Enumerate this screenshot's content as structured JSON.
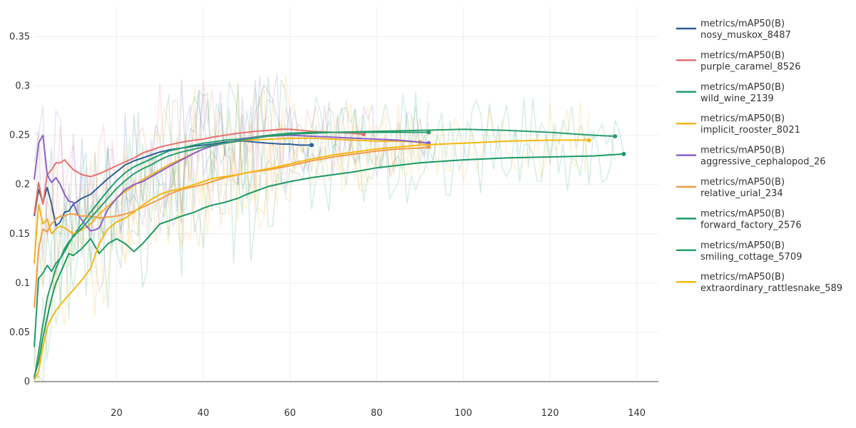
{
  "chart_data": {
    "type": "line",
    "title": "",
    "xlabel": "",
    "ylabel": "",
    "xlim": [
      1,
      145
    ],
    "ylim": [
      0,
      0.38
    ],
    "xticks": [
      20,
      40,
      60,
      80,
      100,
      120,
      140
    ],
    "yticks": [
      0,
      0.05,
      0.1,
      0.15,
      0.2,
      0.25,
      0.3,
      0.35
    ],
    "ytick_labels": [
      "0",
      "0.05",
      "0.1",
      "0.15",
      "0.2",
      "0.25",
      "0.3",
      "0.35"
    ],
    "grid": true,
    "legend_position": "right",
    "series": [
      {
        "name": "nosy_muskox_8487",
        "legend_metric": "metrics/mAP50(B)",
        "color": "#2f5f98",
        "x": [
          1,
          2,
          3,
          4,
          5,
          6,
          7,
          8,
          9,
          10,
          12,
          14,
          16,
          18,
          20,
          22,
          24,
          26,
          28,
          30,
          32,
          35,
          38,
          40,
          42,
          45,
          48,
          50,
          52,
          55,
          58,
          60,
          62,
          65
        ],
        "y": [
          0.168,
          0.195,
          0.182,
          0.197,
          0.18,
          0.158,
          0.162,
          0.172,
          0.173,
          0.18,
          0.186,
          0.19,
          0.198,
          0.206,
          0.213,
          0.22,
          0.224,
          0.227,
          0.23,
          0.233,
          0.235,
          0.237,
          0.239,
          0.24,
          0.241,
          0.243,
          0.244,
          0.244,
          0.243,
          0.242,
          0.241,
          0.241,
          0.24,
          0.24
        ]
      },
      {
        "name": "purple_caramel_8526",
        "legend_metric": "metrics/mAP50(B)",
        "color": "#e8716c",
        "x": [
          1,
          2,
          3,
          4,
          5,
          6,
          7,
          8,
          9,
          10,
          12,
          14,
          16,
          18,
          20,
          22,
          24,
          26,
          28,
          30,
          32,
          35,
          38,
          40,
          42,
          45,
          48,
          50,
          52,
          55,
          58,
          60,
          65,
          70,
          74,
          77
        ],
        "y": [
          0.17,
          0.202,
          0.18,
          0.21,
          0.215,
          0.222,
          0.222,
          0.225,
          0.22,
          0.215,
          0.21,
          0.208,
          0.211,
          0.215,
          0.219,
          0.223,
          0.227,
          0.232,
          0.235,
          0.238,
          0.24,
          0.243,
          0.245,
          0.246,
          0.248,
          0.25,
          0.252,
          0.253,
          0.254,
          0.255,
          0.256,
          0.256,
          0.254,
          0.253,
          0.252,
          0.251
        ]
      },
      {
        "name": "wild_wine_2139",
        "legend_metric": "metrics/mAP50(B)",
        "color": "#1f9e6e",
        "x": [
          1,
          2,
          3,
          4,
          5,
          6,
          7,
          8,
          9,
          10,
          12,
          14,
          16,
          18,
          20,
          22,
          24,
          26,
          28,
          30,
          32,
          35,
          38,
          40,
          42,
          45,
          48,
          50,
          55,
          60,
          65,
          70,
          75,
          80,
          85,
          92
        ],
        "y": [
          0.035,
          0.105,
          0.11,
          0.118,
          0.112,
          0.12,
          0.125,
          0.132,
          0.14,
          0.148,
          0.16,
          0.172,
          0.183,
          0.194,
          0.204,
          0.212,
          0.218,
          0.222,
          0.226,
          0.23,
          0.234,
          0.237,
          0.24,
          0.242,
          0.243,
          0.245,
          0.246,
          0.247,
          0.25,
          0.252,
          0.253,
          0.253,
          0.253,
          0.253,
          0.253,
          0.253
        ]
      },
      {
        "name": "implicit_rooster_8021",
        "legend_metric": "metrics/mAP50(B)",
        "color": "#f2b31c",
        "x": [
          1,
          2,
          3,
          4,
          5,
          6,
          7,
          8,
          9,
          10,
          12,
          14,
          16,
          18,
          20,
          22,
          24,
          26,
          28,
          30,
          32,
          35,
          38,
          40,
          42,
          45,
          48,
          50,
          55,
          60,
          65,
          70,
          75,
          80,
          85,
          90
        ],
        "y": [
          0.12,
          0.18,
          0.16,
          0.165,
          0.15,
          0.155,
          0.158,
          0.156,
          0.153,
          0.15,
          0.154,
          0.16,
          0.17,
          0.178,
          0.186,
          0.193,
          0.199,
          0.205,
          0.21,
          0.215,
          0.22,
          0.226,
          0.232,
          0.236,
          0.239,
          0.242,
          0.244,
          0.245,
          0.246,
          0.247,
          0.247,
          0.246,
          0.245,
          0.244,
          0.244,
          0.243
        ]
      },
      {
        "name": "aggressive_cephalopod_26",
        "legend_metric": "metrics/mAP50(B)",
        "color": "#8a5fc9",
        "x": [
          1,
          2,
          3,
          4,
          5,
          6,
          7,
          8,
          9,
          10,
          11,
          12,
          13,
          14,
          15,
          16,
          18,
          20,
          22,
          24,
          26,
          28,
          30,
          32,
          35,
          38,
          40,
          42,
          45,
          48,
          50,
          55,
          60,
          65,
          70,
          75,
          80,
          85,
          90,
          92
        ],
        "y": [
          0.205,
          0.242,
          0.25,
          0.21,
          0.202,
          0.207,
          0.2,
          0.19,
          0.183,
          0.182,
          0.17,
          0.164,
          0.158,
          0.153,
          0.154,
          0.156,
          0.175,
          0.186,
          0.195,
          0.2,
          0.203,
          0.208,
          0.213,
          0.218,
          0.225,
          0.232,
          0.236,
          0.239,
          0.242,
          0.245,
          0.247,
          0.249,
          0.25,
          0.249,
          0.248,
          0.247,
          0.246,
          0.245,
          0.243,
          0.242
        ]
      },
      {
        "name": "relative_urial_234",
        "legend_metric": "metrics/mAP50(B)",
        "color": "#f39b44",
        "x": [
          1,
          2,
          3,
          4,
          5,
          6,
          7,
          8,
          9,
          10,
          12,
          14,
          16,
          18,
          20,
          22,
          24,
          26,
          28,
          30,
          32,
          35,
          38,
          40,
          42,
          45,
          48,
          50,
          55,
          60,
          65,
          70,
          75,
          80,
          85,
          90,
          92
        ],
        "y": [
          0.075,
          0.135,
          0.155,
          0.152,
          0.16,
          0.165,
          0.168,
          0.168,
          0.17,
          0.17,
          0.168,
          0.168,
          0.166,
          0.167,
          0.168,
          0.17,
          0.173,
          0.177,
          0.181,
          0.185,
          0.19,
          0.195,
          0.198,
          0.2,
          0.203,
          0.207,
          0.21,
          0.212,
          0.215,
          0.219,
          0.224,
          0.228,
          0.231,
          0.234,
          0.236,
          0.237,
          0.238
        ]
      },
      {
        "name": "forward_factory_2576",
        "legend_metric": "metrics/mAP50(B)",
        "color": "#1a9a62",
        "x": [
          1,
          2,
          3,
          4,
          5,
          6,
          7,
          8,
          9,
          10,
          12,
          14,
          16,
          18,
          20,
          22,
          24,
          26,
          28,
          30,
          32,
          35,
          38,
          40,
          42,
          45,
          48,
          50,
          55,
          60,
          65,
          70,
          75,
          80,
          90,
          100,
          110,
          120,
          130,
          137
        ],
        "y": [
          0.005,
          0.02,
          0.045,
          0.065,
          0.085,
          0.1,
          0.11,
          0.12,
          0.13,
          0.128,
          0.135,
          0.145,
          0.13,
          0.14,
          0.145,
          0.14,
          0.132,
          0.14,
          0.15,
          0.16,
          0.163,
          0.168,
          0.172,
          0.176,
          0.179,
          0.182,
          0.186,
          0.19,
          0.198,
          0.203,
          0.207,
          0.21,
          0.213,
          0.217,
          0.222,
          0.225,
          0.227,
          0.228,
          0.229,
          0.231
        ]
      },
      {
        "name": "smiling_cottage_5709",
        "legend_metric": "metrics/mAP50(B)",
        "color": "#2a9e6b",
        "x": [
          1,
          2,
          3,
          4,
          5,
          6,
          7,
          8,
          9,
          10,
          12,
          14,
          16,
          18,
          20,
          22,
          24,
          26,
          28,
          30,
          32,
          35,
          38,
          40,
          42,
          45,
          48,
          50,
          55,
          60,
          70,
          80,
          90,
          100,
          110,
          120,
          130,
          135
        ],
        "y": [
          0.003,
          0.03,
          0.058,
          0.085,
          0.1,
          0.115,
          0.125,
          0.135,
          0.142,
          0.147,
          0.156,
          0.166,
          0.176,
          0.186,
          0.196,
          0.204,
          0.211,
          0.216,
          0.22,
          0.225,
          0.229,
          0.233,
          0.236,
          0.238,
          0.24,
          0.242,
          0.244,
          0.246,
          0.249,
          0.251,
          0.253,
          0.254,
          0.255,
          0.256,
          0.255,
          0.253,
          0.25,
          0.249
        ]
      },
      {
        "name": "extraordinary_rattlesnake_589",
        "legend_metric": "metrics/mAP50(B)",
        "color": "#f5b70f",
        "x": [
          1,
          2,
          3,
          4,
          5,
          6,
          7,
          8,
          9,
          10,
          12,
          14,
          16,
          18,
          20,
          22,
          24,
          26,
          28,
          30,
          32,
          35,
          38,
          40,
          42,
          45,
          48,
          50,
          55,
          60,
          65,
          70,
          80,
          90,
          100,
          110,
          120,
          129
        ],
        "y": [
          0.002,
          0.01,
          0.035,
          0.055,
          0.065,
          0.072,
          0.078,
          0.083,
          0.088,
          0.093,
          0.103,
          0.115,
          0.14,
          0.155,
          0.162,
          0.166,
          0.172,
          0.179,
          0.185,
          0.19,
          0.193,
          0.196,
          0.2,
          0.203,
          0.206,
          0.208,
          0.21,
          0.212,
          0.216,
          0.221,
          0.226,
          0.23,
          0.236,
          0.24,
          0.242,
          0.244,
          0.245,
          0.245
        ]
      }
    ]
  }
}
